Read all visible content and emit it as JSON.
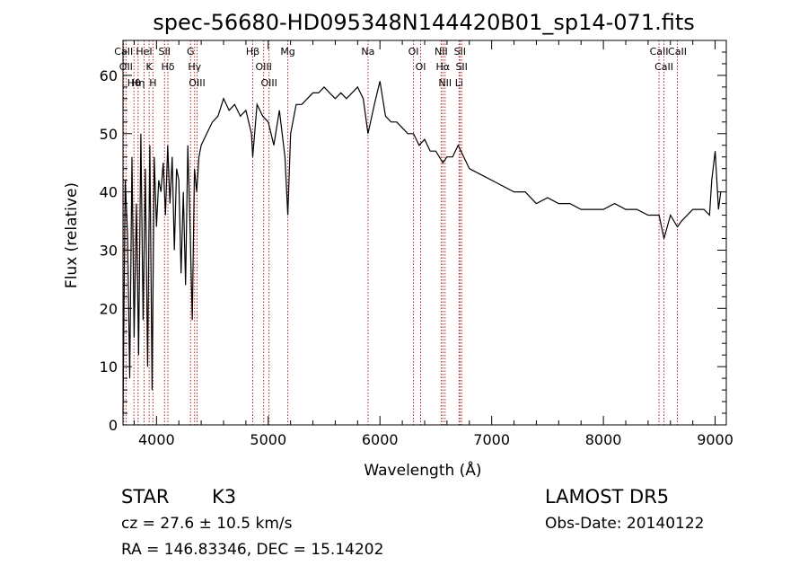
{
  "chart_data": {
    "type": "line",
    "title": "spec-56680-HD095348N144420B01_sp14-071.fits",
    "xlabel": "Wavelength (Å)",
    "ylabel": "Flux (relative)",
    "xlim": [
      3700,
      9100
    ],
    "ylim": [
      0,
      66
    ],
    "xticks": [
      4000,
      5000,
      6000,
      7000,
      8000,
      9000
    ],
    "yticks": [
      0,
      10,
      20,
      30,
      40,
      50,
      60
    ],
    "grid": false,
    "line_color": "#000000",
    "marker_color": "#b22222",
    "series": [
      {
        "values_note": "",
        "x": [
          3700,
          3720,
          3740,
          3760,
          3780,
          3800,
          3820,
          3840,
          3860,
          3880,
          3900,
          3920,
          3940,
          3960,
          3980,
          4000,
          4020,
          4040,
          4060,
          4080,
          4100,
          4120,
          4140,
          4160,
          4180,
          4200,
          4220,
          4240,
          4260,
          4280,
          4300,
          4320,
          4340,
          4360,
          4380,
          4400,
          4450,
          4500,
          4550,
          4600,
          4650,
          4700,
          4750,
          4800,
          4850,
          4861,
          4900,
          4950,
          5000,
          5050,
          5100,
          5150,
          5175,
          5200,
          5250,
          5300,
          5350,
          5400,
          5450,
          5500,
          5550,
          5600,
          5650,
          5700,
          5750,
          5800,
          5850,
          5893,
          5950,
          6000,
          6050,
          6100,
          6150,
          6200,
          6250,
          6300,
          6350,
          6400,
          6450,
          6500,
          6563,
          6600,
          6650,
          6700,
          6750,
          6800,
          6900,
          7000,
          7100,
          7200,
          7300,
          7400,
          7500,
          7600,
          7700,
          7800,
          7900,
          8000,
          8100,
          8200,
          8300,
          8400,
          8498,
          8542,
          8600,
          8662,
          8700,
          8800,
          8900,
          8950,
          8970,
          9000,
          9030,
          9050
        ],
        "y": [
          2,
          42,
          33,
          8,
          46,
          15,
          38,
          12,
          50,
          18,
          44,
          10,
          48,
          6,
          46,
          34,
          42,
          40,
          45,
          36,
          48,
          38,
          46,
          30,
          44,
          42,
          26,
          40,
          24,
          48,
          34,
          18,
          44,
          40,
          46,
          48,
          50,
          52,
          53,
          56,
          54,
          55,
          53,
          54,
          50,
          46,
          55,
          53,
          52,
          48,
          54,
          46,
          36,
          50,
          55,
          55,
          56,
          57,
          57,
          58,
          57,
          56,
          57,
          56,
          57,
          58,
          56,
          50,
          55,
          59,
          53,
          52,
          52,
          51,
          50,
          50,
          48,
          49,
          47,
          47,
          45,
          46,
          46,
          48,
          46,
          44,
          43,
          42,
          41,
          40,
          40,
          38,
          39,
          38,
          38,
          37,
          37,
          37,
          38,
          37,
          37,
          36,
          36,
          32,
          36,
          34,
          35,
          37,
          37,
          36,
          42,
          47,
          37,
          40
        ]
      }
    ],
    "lines": [
      {
        "name": "CaII",
        "wavelength": 3706
      },
      {
        "name": "OII",
        "wavelength": 3727
      },
      {
        "name": "Hθ",
        "wavelength": 3798
      },
      {
        "name": "Hη",
        "wavelength": 3835
      },
      {
        "name": "HeI",
        "wavelength": 3889
      },
      {
        "name": "K",
        "wavelength": 3934
      },
      {
        "name": "H",
        "wavelength": 3968
      },
      {
        "name": "SII",
        "wavelength": 4072
      },
      {
        "name": "Hδ",
        "wavelength": 4102
      },
      {
        "name": "G",
        "wavelength": 4305
      },
      {
        "name": "Hγ",
        "wavelength": 4341
      },
      {
        "name": "OIII",
        "wavelength": 4363
      },
      {
        "name": "Hβ",
        "wavelength": 4861
      },
      {
        "name": "OIII",
        "wavelength": 4959
      },
      {
        "name": "OIII",
        "wavelength": 5007
      },
      {
        "name": "Mg",
        "wavelength": 5175
      },
      {
        "name": "Na",
        "wavelength": 5893
      },
      {
        "name": "OI",
        "wavelength": 6300
      },
      {
        "name": "OI",
        "wavelength": 6364
      },
      {
        "name": "NII",
        "wavelength": 6548
      },
      {
        "name": "Hα",
        "wavelength": 6563
      },
      {
        "name": "NII",
        "wavelength": 6583
      },
      {
        "name": "Li",
        "wavelength": 6708
      },
      {
        "name": "SII",
        "wavelength": 6716
      },
      {
        "name": "SII",
        "wavelength": 6731
      },
      {
        "name": "CaII",
        "wavelength": 8498
      },
      {
        "name": "CaII",
        "wavelength": 8542
      },
      {
        "name": "CaII",
        "wavelength": 8662
      }
    ]
  },
  "info": {
    "class": "STAR",
    "subclass": "K3",
    "survey": "LAMOST DR5",
    "redshift": "cz = 27.6 ± 10.5 km/s",
    "obs_date": "Obs-Date: 20140122",
    "coords": "RA = 146.83346, DEC =  15.14202"
  }
}
